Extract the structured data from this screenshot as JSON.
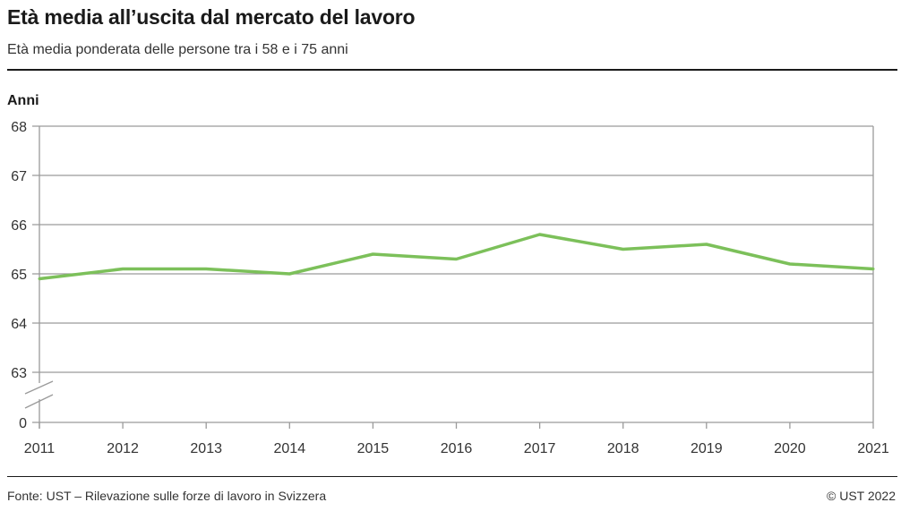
{
  "header": {
    "title": "Età media all’uscita dal mercato del lavoro",
    "subtitle": "Età media ponderata delle persone tra i 58 e i 75 anni"
  },
  "footer": {
    "source": "Fonte: UST – Rilevazione sulle forze di lavoro in Svizzera",
    "copyright": "© UST 2022"
  },
  "chart_data": {
    "type": "line",
    "ylabel": "Anni",
    "xlabel": "",
    "x": [
      2011,
      2012,
      2013,
      2014,
      2015,
      2016,
      2017,
      2018,
      2019,
      2020,
      2021
    ],
    "series": [
      {
        "values": [
          64.9,
          65.1,
          65.1,
          65.0,
          65.4,
          65.3,
          65.8,
          65.5,
          65.6,
          65.2,
          65.1
        ],
        "color": "#7cc05a"
      }
    ],
    "ylim": [
      63,
      68
    ],
    "yticks": [
      68,
      67,
      66,
      65,
      64,
      63,
      0
    ],
    "axis_break": "between 0 and 63",
    "grid": true,
    "legend": "none"
  }
}
